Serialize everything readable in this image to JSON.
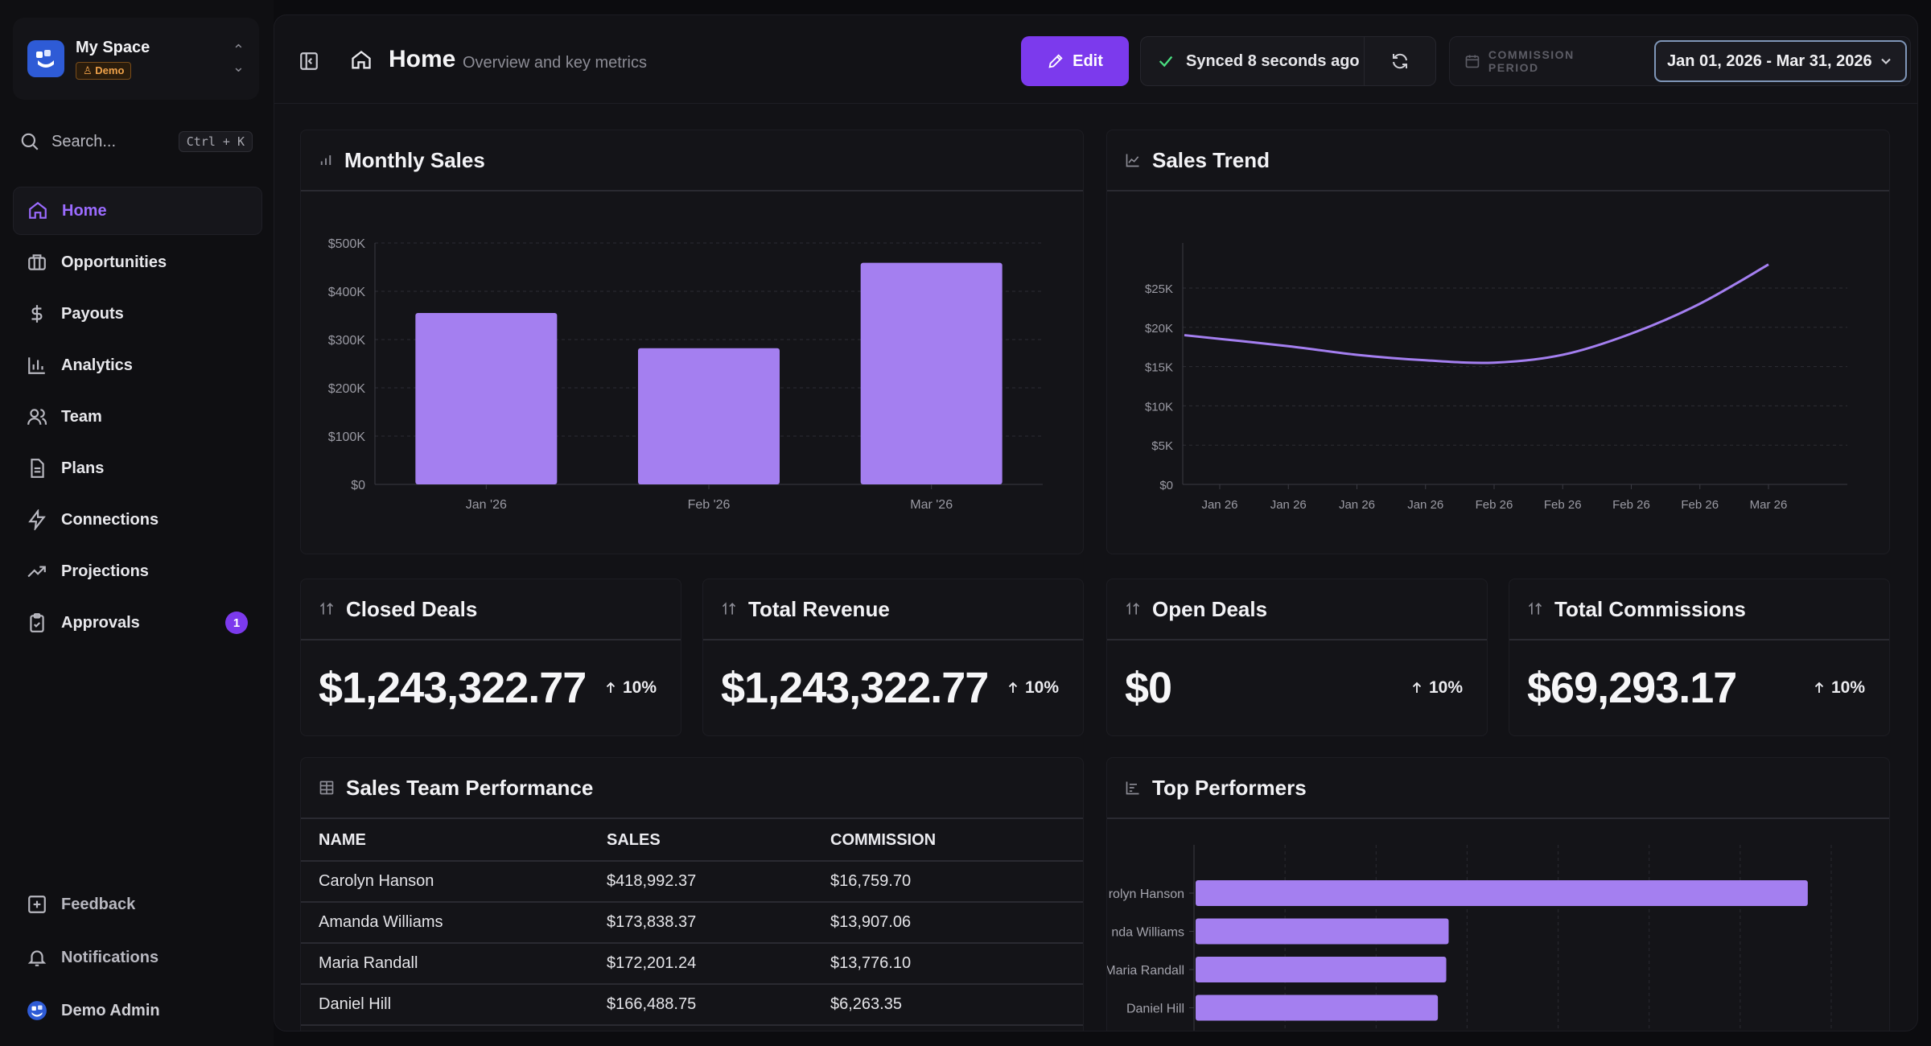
{
  "workspace": {
    "name": "My Space",
    "badge": "Demo"
  },
  "search": {
    "label": "Search...",
    "shortcut": "Ctrl + K"
  },
  "nav": [
    {
      "label": "Home",
      "icon": "home-icon",
      "active": true
    },
    {
      "label": "Opportunities",
      "icon": "briefcase-icon"
    },
    {
      "label": "Payouts",
      "icon": "dollar-icon"
    },
    {
      "label": "Analytics",
      "icon": "bar-chart-icon"
    },
    {
      "label": "Team",
      "icon": "users-icon"
    },
    {
      "label": "Plans",
      "icon": "document-icon"
    },
    {
      "label": "Connections",
      "icon": "lightning-icon"
    },
    {
      "label": "Projections",
      "icon": "trending-up-icon"
    },
    {
      "label": "Approvals",
      "icon": "clipboard-check-icon",
      "badge": "1"
    }
  ],
  "footer_nav": [
    {
      "label": "Feedback",
      "icon": "feedback-icon"
    },
    {
      "label": "Notifications",
      "icon": "bell-icon"
    },
    {
      "label": "Demo Admin",
      "icon": "avatar-icon"
    }
  ],
  "header": {
    "title": "Home",
    "subtitle": "Overview and key metrics",
    "edit_label": "Edit",
    "sync_status": "Synced 8 seconds ago",
    "period_label": "COMMISSION PERIOD",
    "period_value": "Jan 01, 2026 - Mar 31, 2026"
  },
  "colors": {
    "accent": "#7c3aed",
    "bar": "#a47ff0",
    "line": "#a47ff0"
  },
  "monthly_sales": {
    "title": "Monthly Sales",
    "chart_data": {
      "type": "bar",
      "categories": [
        "Jan '26",
        "Feb '26",
        "Mar '26"
      ],
      "values": [
        355000,
        282000,
        459000
      ],
      "ylim": [
        0,
        500000
      ],
      "yticks": [
        "$0",
        "$100K",
        "$200K",
        "$300K",
        "$400K",
        "$500K"
      ],
      "grid": true
    }
  },
  "sales_trend": {
    "title": "Sales Trend",
    "chart_data": {
      "type": "line",
      "x": [
        "Jan 26",
        "Jan 26",
        "Jan 26",
        "Jan 26",
        "Feb 26",
        "Feb 26",
        "Feb 26",
        "Feb 26",
        "Mar 26"
      ],
      "values": [
        19000,
        17600,
        16500,
        15800,
        15500,
        16500,
        19200,
        23000,
        28000
      ],
      "ylim": [
        0,
        28000
      ],
      "yticks": [
        "$0",
        "$5K",
        "$10K",
        "$15K",
        "$20K",
        "$25K"
      ],
      "grid": true
    }
  },
  "metrics": [
    {
      "title": "Closed Deals",
      "value": "$1,243,322.77",
      "change": "10%"
    },
    {
      "title": "Total Revenue",
      "value": "$1,243,322.77",
      "change": "10%"
    },
    {
      "title": "Open Deals",
      "value": "$0",
      "change": "10%"
    },
    {
      "title": "Total Commissions",
      "value": "$69,293.17",
      "change": "10%"
    }
  ],
  "performance": {
    "title": "Sales Team Performance",
    "columns": [
      "NAME",
      "SALES",
      "COMMISSION"
    ],
    "rows": [
      [
        "Carolyn Hanson",
        "$418,992.37",
        "$16,759.70"
      ],
      [
        "Amanda Williams",
        "$173,838.37",
        "$13,907.06"
      ],
      [
        "Maria Randall",
        "$172,201.24",
        "$13,776.10"
      ],
      [
        "Daniel Hill",
        "$166,488.75",
        "$6,263.35"
      ]
    ]
  },
  "top_performers": {
    "title": "Top Performers",
    "chart_data": {
      "type": "bar",
      "orientation": "horizontal",
      "categories": [
        "Carolyn Hanson",
        "Amanda Williams",
        "Maria Randall",
        "Daniel Hill"
      ],
      "tick_labels": [
        "rolyn Hanson",
        "nda Williams",
        "Maria Randall",
        "Daniel Hill"
      ],
      "values": [
        418992.37,
        173838.37,
        172201.24,
        166488.75
      ],
      "xlim": [
        0,
        435000
      ],
      "grid": true
    }
  }
}
